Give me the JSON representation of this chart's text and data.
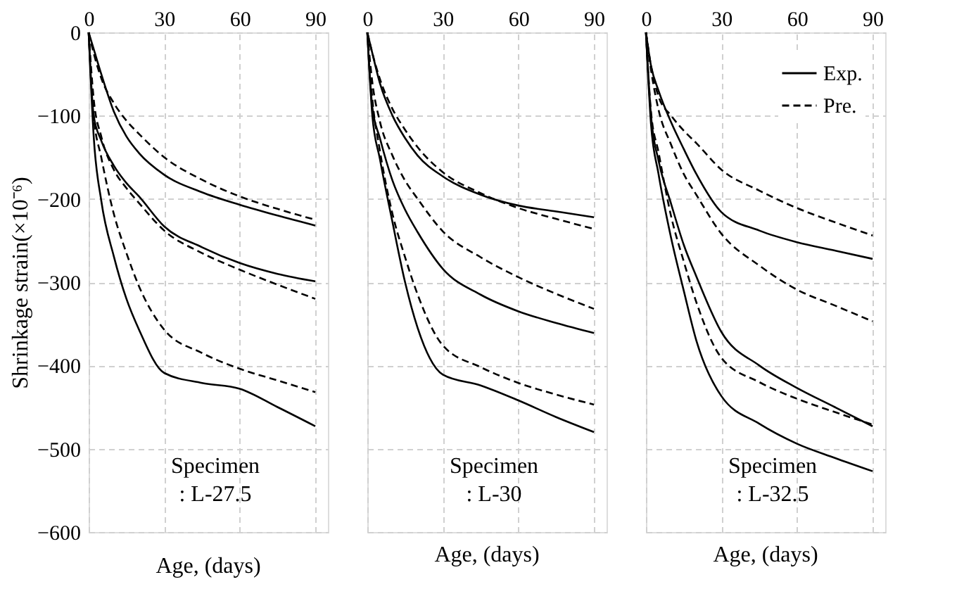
{
  "chart_data": [
    {
      "type": "line",
      "xlabel": "Age, (days)",
      "ylabel": "Shrinkage strain(×10⁻⁶)",
      "annotations": [
        "Specimen\n: L-27.5"
      ],
      "xlim": [
        0,
        95
      ],
      "ylim": [
        -600,
        0
      ],
      "xticks": [
        0,
        30,
        60,
        90
      ],
      "yticks": [
        0,
        -100,
        -200,
        -300,
        -400,
        -500,
        -600
      ],
      "grid": true,
      "legend": false,
      "marker": "none",
      "x": [
        0,
        2,
        5,
        10,
        15,
        20,
        30,
        45,
        60,
        75,
        90
      ],
      "series": [
        {
          "color": "#000000",
          "line_style": "solid",
          "values": [
            0,
            -20,
            -50,
            -95,
            -125,
            -145,
            -171,
            -192,
            -207,
            -220,
            -232
          ]
        },
        {
          "color": "#000000",
          "line_style": "dashed",
          "values": [
            0,
            -25,
            -55,
            -85,
            -106,
            -122,
            -150,
            -177,
            -197,
            -212,
            -225
          ]
        },
        {
          "color": "#000000",
          "line_style": "solid",
          "values": [
            0,
            -100,
            -130,
            -160,
            -181,
            -197,
            -233,
            -258,
            -277,
            -290,
            -299
          ]
        },
        {
          "color": "#000000",
          "line_style": "dashed",
          "values": [
            0,
            -80,
            -125,
            -165,
            -187,
            -205,
            -238,
            -265,
            -285,
            -303,
            -320
          ]
        },
        {
          "color": "#000000",
          "line_style": "solid",
          "values": [
            0,
            -125,
            -202,
            -269,
            -320,
            -357,
            -409,
            -421,
            -428,
            -450,
            -473
          ]
        },
        {
          "color": "#000000",
          "line_style": "dashed",
          "values": [
            0,
            -100,
            -150,
            -218,
            -265,
            -305,
            -357,
            -385,
            -404,
            -418,
            -432
          ]
        }
      ]
    },
    {
      "type": "line",
      "xlabel": "Age, (days)",
      "annotations": [
        "Specimen\n: L-30"
      ],
      "xlim": [
        0,
        95
      ],
      "ylim": [
        -600,
        0
      ],
      "xticks": [
        0,
        30,
        60,
        90
      ],
      "yticks": [
        0,
        -100,
        -200,
        -300,
        -400,
        -500,
        -600
      ],
      "grid": true,
      "legend": false,
      "marker": "none",
      "tick_labels": "x",
      "x": [
        0,
        2,
        5,
        10,
        15,
        20,
        30,
        45,
        60,
        75,
        90
      ],
      "series": [
        {
          "color": "#000000",
          "line_style": "solid",
          "values": [
            0,
            -25,
            -61,
            -100,
            -127,
            -148,
            -173,
            -195,
            -208,
            -215,
            -222
          ]
        },
        {
          "color": "#000000",
          "line_style": "dashed",
          "values": [
            0,
            -25,
            -56,
            -92,
            -117,
            -138,
            -168,
            -193,
            -211,
            -224,
            -236
          ]
        },
        {
          "color": "#000000",
          "line_style": "solid",
          "values": [
            0,
            -90,
            -127,
            -178,
            -213,
            -240,
            -284,
            -315,
            -335,
            -349,
            -361
          ]
        },
        {
          "color": "#000000",
          "line_style": "dashed",
          "values": [
            0,
            -60,
            -107,
            -148,
            -178,
            -200,
            -239,
            -270,
            -294,
            -314,
            -332
          ]
        },
        {
          "color": "#000000",
          "line_style": "solid",
          "values": [
            0,
            -100,
            -152,
            -228,
            -300,
            -355,
            -411,
            -424,
            -442,
            -462,
            -480
          ]
        },
        {
          "color": "#000000",
          "line_style": "dashed",
          "values": [
            0,
            -80,
            -142,
            -218,
            -270,
            -315,
            -376,
            -402,
            -421,
            -435,
            -447
          ]
        }
      ]
    },
    {
      "type": "line",
      "xlabel": "Age, (days)",
      "annotations": [
        "Specimen\n: L-32.5"
      ],
      "xlim": [
        0,
        95
      ],
      "ylim": [
        -600,
        0
      ],
      "xticks": [
        0,
        30,
        60,
        90
      ],
      "yticks": [
        0,
        -100,
        -200,
        -300,
        -400,
        -500,
        -600
      ],
      "grid": true,
      "legend": "top right",
      "marker": "none",
      "tick_labels": "x",
      "x": [
        0,
        2,
        5,
        10,
        15,
        20,
        30,
        45,
        60,
        75,
        90
      ],
      "series": [
        {
          "name": "Exp.",
          "color": "#000000",
          "line_style": "solid",
          "values": [
            0,
            -40,
            -70,
            -108,
            -140,
            -170,
            -216,
            -238,
            -252,
            -262,
            -272
          ]
        },
        {
          "name": "Pre.",
          "color": "#000000",
          "line_style": "dashed",
          "values": [
            0,
            -40,
            -77,
            -100,
            -118,
            -133,
            -165,
            -190,
            -211,
            -228,
            -244
          ]
        },
        {
          "color": "#000000",
          "line_style": "dashed",
          "values": [
            0,
            -45,
            -93,
            -135,
            -170,
            -195,
            -242,
            -280,
            -309,
            -328,
            -347
          ]
        },
        {
          "color": "#000000",
          "line_style": "solid",
          "values": [
            0,
            -100,
            -154,
            -206,
            -255,
            -293,
            -360,
            -400,
            -427,
            -450,
            -473
          ]
        },
        {
          "color": "#000000",
          "line_style": "dashed",
          "values": [
            0,
            -95,
            -144,
            -221,
            -275,
            -324,
            -391,
            -420,
            -440,
            -456,
            -471
          ]
        },
        {
          "color": "#000000",
          "line_style": "solid",
          "values": [
            0,
            -110,
            -170,
            -247,
            -310,
            -370,
            -437,
            -470,
            -494,
            -511,
            -527
          ]
        }
      ]
    }
  ]
}
